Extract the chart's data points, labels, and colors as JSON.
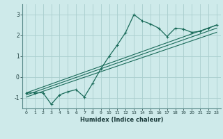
{
  "xlabel": "Humidex (Indice chaleur)",
  "background_color": "#ceeaea",
  "grid_color": "#aacece",
  "line_color": "#1a6b5a",
  "xlim": [
    -0.5,
    23.5
  ],
  "ylim": [
    -1.5,
    3.5
  ],
  "xticks": [
    0,
    1,
    2,
    3,
    4,
    5,
    6,
    7,
    8,
    9,
    10,
    11,
    12,
    13,
    14,
    15,
    16,
    17,
    18,
    19,
    20,
    21,
    22,
    23
  ],
  "yticks": [
    -1,
    0,
    1,
    2,
    3
  ],
  "main_line_x": [
    0,
    1,
    2,
    3,
    4,
    5,
    6,
    7,
    8,
    9,
    10,
    11,
    12,
    13,
    14,
    15,
    16,
    17,
    18,
    19,
    20,
    21,
    22,
    23
  ],
  "main_line_y": [
    -0.75,
    -0.75,
    -0.75,
    -1.3,
    -0.85,
    -0.7,
    -0.6,
    -0.95,
    -0.3,
    0.4,
    1.0,
    1.55,
    2.15,
    3.0,
    2.7,
    2.55,
    2.35,
    1.95,
    2.35,
    2.3,
    2.15,
    2.2,
    2.35,
    2.5
  ],
  "line1_x": [
    0,
    23
  ],
  "line1_y": [
    -0.75,
    2.5
  ],
  "line2_x": [
    0,
    23
  ],
  "line2_y": [
    -0.85,
    2.35
  ],
  "line3_x": [
    0,
    23
  ],
  "line3_y": [
    -0.95,
    2.15
  ]
}
